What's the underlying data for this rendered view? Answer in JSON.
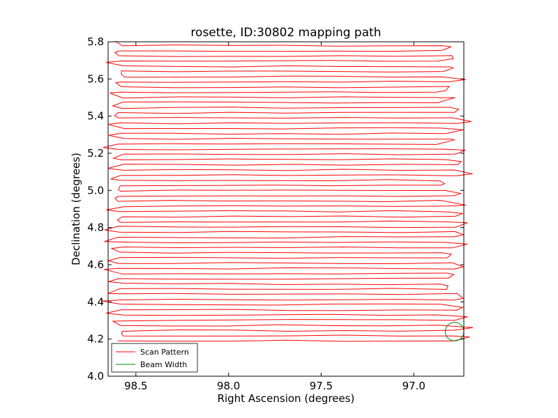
{
  "chart_data": {
    "type": "line",
    "title": "rosette, ID:30802 mapping path",
    "xlabel": "Right Ascension (degrees)",
    "ylabel": "Declination (degrees)",
    "xlim": [
      98.65,
      96.73
    ],
    "ylim": [
      4.0,
      5.8
    ],
    "x_inverted": true,
    "xticks": [
      98.5,
      98.0,
      97.5,
      97.0
    ],
    "yticks": [
      4.0,
      4.2,
      4.4,
      4.6,
      4.8,
      5.0,
      5.2,
      5.4,
      5.6,
      5.8
    ],
    "grid": false,
    "legend": {
      "placement": "lower-left",
      "entries": [
        {
          "label": "Scan Pattern",
          "color": "#ff0000"
        },
        {
          "label": "Beam Width",
          "color": "#008000"
        }
      ]
    },
    "series": [
      {
        "name": "Scan Pattern",
        "color": "#ff0000",
        "description_free": true,
        "dec_start": 4.19,
        "dec_end": 5.78,
        "num_rows": 58,
        "ra_west_edge": 98.58,
        "ra_east_edge": 96.88
      },
      {
        "name": "Beam Width",
        "color": "#008000",
        "shape": "circle",
        "center": {
          "ra": 96.78,
          "dec": 4.24
        },
        "radius_deg": 0.05
      }
    ]
  }
}
